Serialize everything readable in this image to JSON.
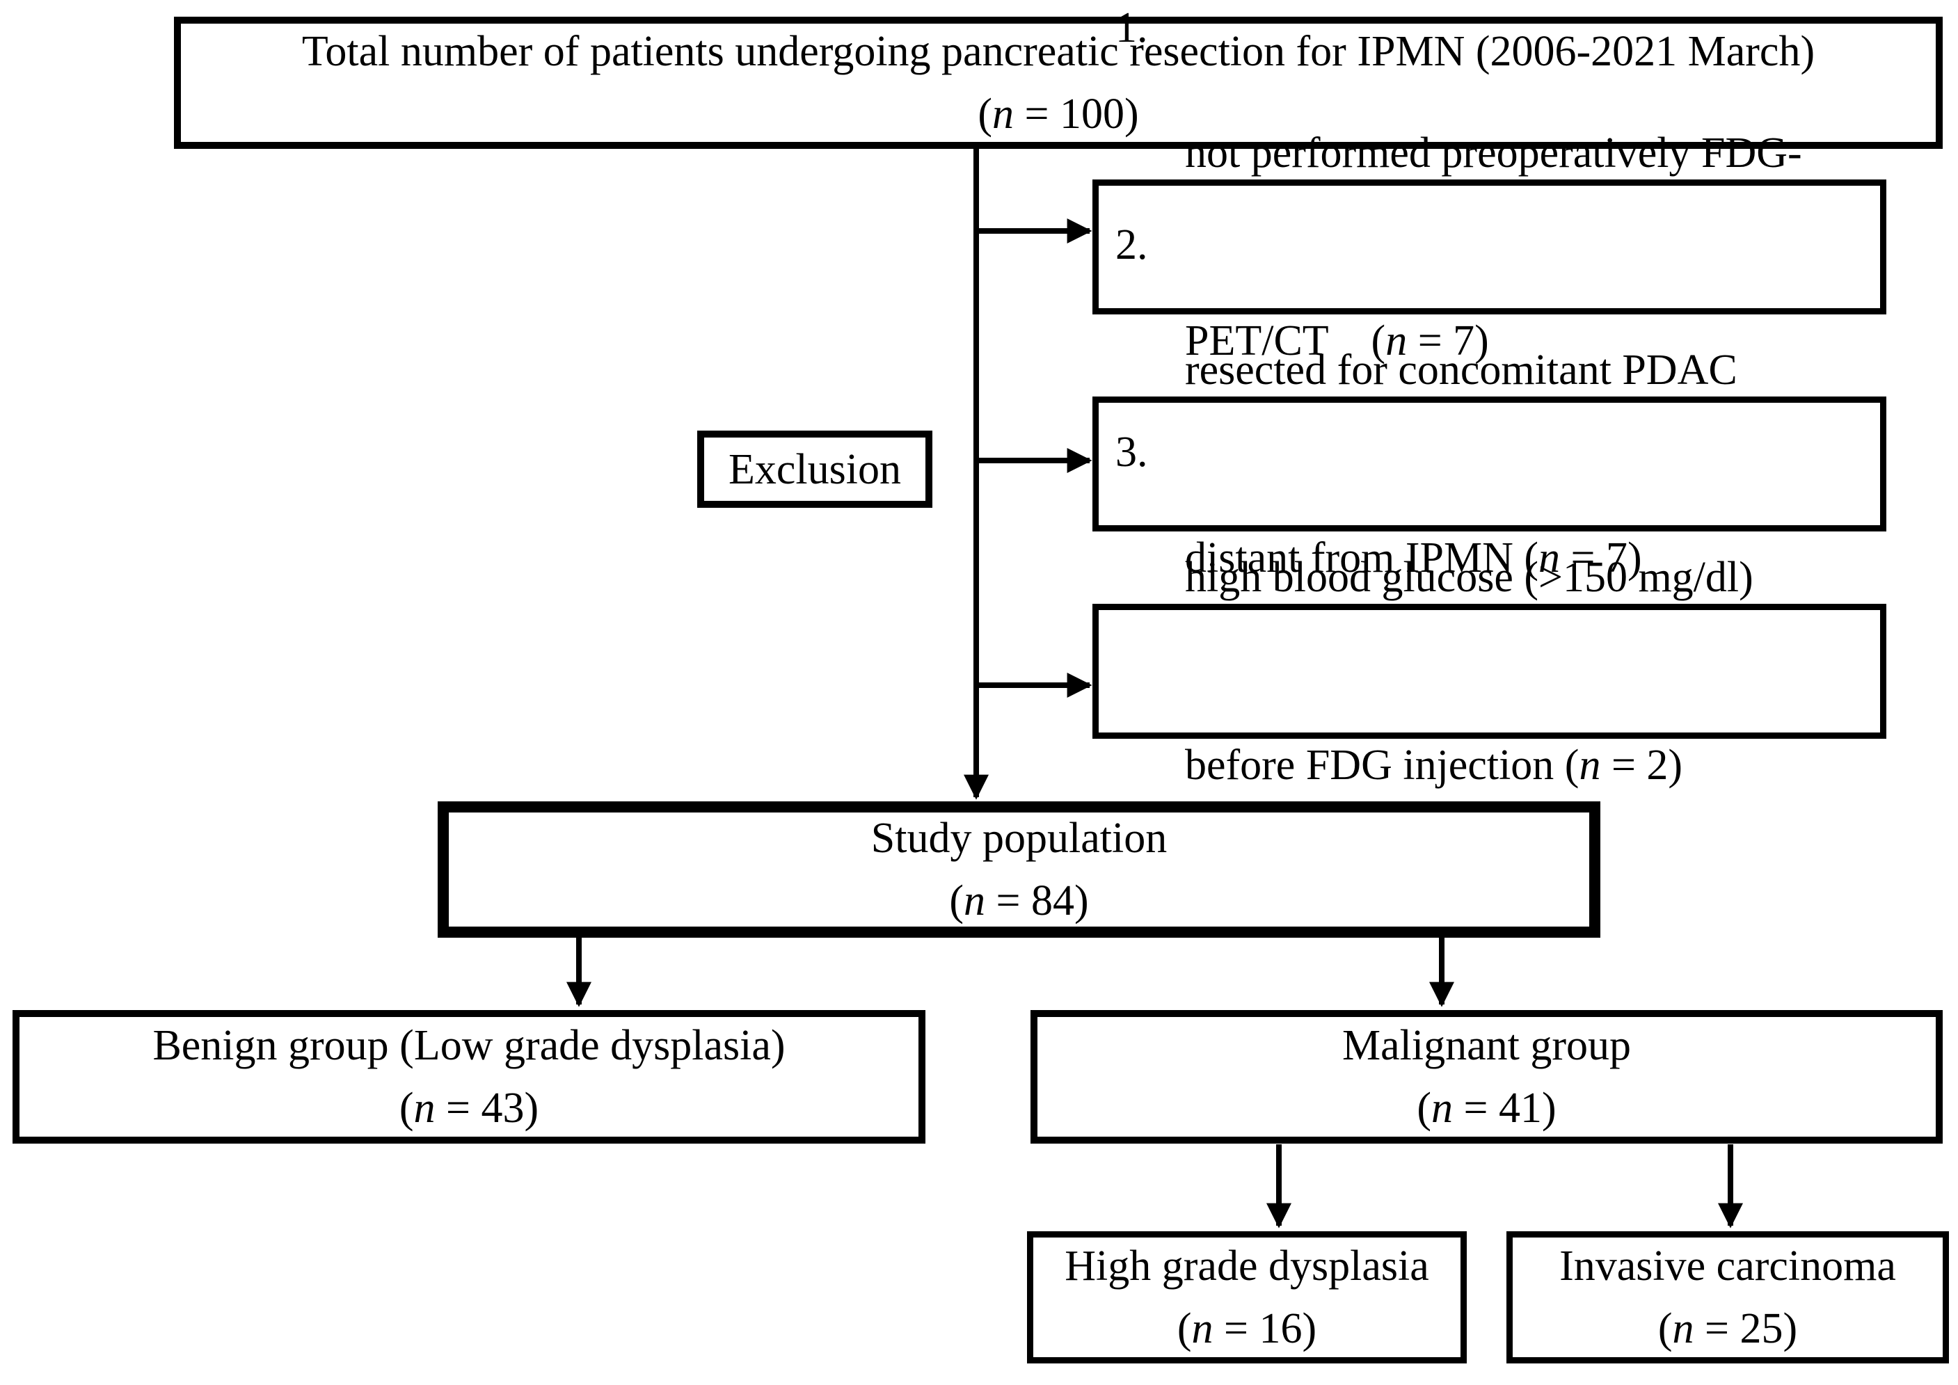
{
  "diagram": {
    "title_box": {
      "line1": "Total number of patients undergoing pancreatic resection for IPMN (2006-2021 March)",
      "line2": "(n = 100)"
    },
    "exclusion_label": "Exclusion",
    "exclusions": [
      {
        "number": "1.",
        "line1": "not performed preoperatively FDG-",
        "line2": "PET/CT    (n = 7)"
      },
      {
        "number": "2.",
        "line1": "resected for concomitant PDAC",
        "line2": "distant from IPMN (n = 7)"
      },
      {
        "number": "3.",
        "line1": "high blood glucose (>150 mg/dl)",
        "line2": "before FDG injection (n = 2)"
      }
    ],
    "study_box": {
      "line1": "Study population",
      "line2": "(n = 84)"
    },
    "benign_box": {
      "line1": "Benign group (Low grade dysplasia)",
      "line2": "(n = 43)"
    },
    "malignant_box": {
      "line1": "Malignant group",
      "line2": "(n = 41)"
    },
    "hgd_box": {
      "line1": "High grade dysplasia",
      "line2": "(n = 16)"
    },
    "invasive_box": {
      "line1": "Invasive carcinoma",
      "line2": "(n = 25)"
    }
  },
  "colors": {
    "line": "#000000",
    "text": "#000000",
    "background": "#ffffff"
  }
}
